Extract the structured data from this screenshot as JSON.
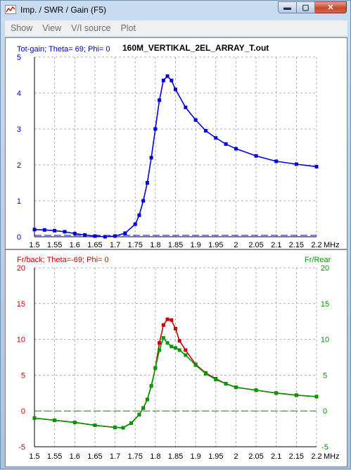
{
  "window": {
    "title": "Imp. / SWR / Gain   (F5)",
    "buttons": {
      "minimize": "▬",
      "maximize": "▢",
      "close": "✕"
    }
  },
  "menu": [
    "Show",
    "View",
    "V/I source",
    "Plot"
  ],
  "plot_title": "160M_VERTIKAL_2EL_ARRAY_T.out",
  "x_unit": "MHz",
  "chart_data": [
    {
      "type": "line",
      "legend_label": "Tot-gain; Theta= 69; Phi= 0",
      "x": [
        1.5,
        1.525,
        1.55,
        1.575,
        1.6,
        1.625,
        1.65,
        1.675,
        1.7,
        1.725,
        1.75,
        1.76,
        1.77,
        1.78,
        1.79,
        1.8,
        1.81,
        1.82,
        1.83,
        1.84,
        1.85,
        1.875,
        1.9,
        1.925,
        1.95,
        1.975,
        2.0,
        2.05,
        2.1,
        2.15,
        2.2
      ],
      "y": [
        0.2,
        0.19,
        0.17,
        0.14,
        0.09,
        0.05,
        0.02,
        0.0,
        0.02,
        0.1,
        0.35,
        0.6,
        1.0,
        1.5,
        2.2,
        3.0,
        3.8,
        4.35,
        4.47,
        4.35,
        4.1,
        3.6,
        3.25,
        2.95,
        2.75,
        2.58,
        2.45,
        2.25,
        2.1,
        2.02,
        1.95
      ],
      "reference_line": 0,
      "x_ticks": [
        "1.5",
        "1.55",
        "1.6",
        "1.65",
        "1.7",
        "1.75",
        "1.8",
        "1.85",
        "1.9",
        "1.95",
        "2",
        "2.05",
        "2.1",
        "2.15",
        "2.2"
      ],
      "y_ticks": [
        "0",
        "1",
        "2",
        "3",
        "4",
        "5"
      ],
      "xlim": [
        1.5,
        2.2
      ],
      "ylim": [
        0,
        5
      ],
      "grid": true,
      "colors": {
        "series": "#0000dd",
        "axis_text": "#0000cc"
      }
    },
    {
      "type": "line",
      "legend_left": "Fr/back; Theta=-69; Phi= 0",
      "legend_right": "Fr/Rear",
      "series": [
        {
          "values_x": [
            1.5,
            1.55,
            1.6,
            1.65,
            1.7,
            1.72,
            1.74,
            1.76,
            1.77,
            1.78,
            1.79,
            1.8,
            1.81,
            1.82,
            1.83,
            1.84,
            1.85,
            1.86,
            1.875,
            1.9,
            1.925,
            1.95,
            1.975,
            2.0,
            2.05,
            2.1,
            2.15,
            2.2
          ],
          "values_y": [
            -1.0,
            -1.3,
            -1.6,
            -2.0,
            -2.3,
            -2.35,
            -1.7,
            -0.5,
            0.4,
            1.6,
            3.5,
            6.0,
            9.5,
            12.0,
            12.8,
            12.7,
            11.5,
            9.8,
            8.5,
            6.5,
            5.3,
            4.5,
            3.8,
            3.3,
            2.9,
            2.5,
            2.2,
            2.0
          ],
          "color": "#cc0000"
        },
        {
          "values_x": [
            1.5,
            1.55,
            1.6,
            1.65,
            1.7,
            1.72,
            1.74,
            1.76,
            1.77,
            1.78,
            1.79,
            1.8,
            1.81,
            1.82,
            1.83,
            1.84,
            1.85,
            1.86,
            1.875,
            1.9,
            1.925,
            1.95,
            1.975,
            2.0,
            2.05,
            2.1,
            2.15,
            2.2
          ],
          "values_y": [
            -1.0,
            -1.3,
            -1.6,
            -2.0,
            -2.3,
            -2.35,
            -1.7,
            -0.5,
            0.4,
            1.6,
            3.5,
            6.0,
            8.5,
            10.2,
            9.5,
            9.0,
            8.8,
            8.5,
            7.8,
            6.4,
            5.2,
            4.4,
            3.8,
            3.3,
            2.9,
            2.5,
            2.2,
            2.0
          ],
          "color": "#009900"
        }
      ],
      "reference_line": 0,
      "x_ticks": [
        "1.5",
        "1.55",
        "1.6",
        "1.65",
        "1.7",
        "1.75",
        "1.8",
        "1.85",
        "1.9",
        "1.95",
        "2",
        "2.05",
        "2.1",
        "2.15",
        "2.2"
      ],
      "y_ticks": [
        "-5",
        "0",
        "5",
        "10",
        "15",
        "20"
      ],
      "xlim": [
        1.5,
        2.2
      ],
      "ylim": [
        -5,
        20
      ],
      "grid": true,
      "colors": {
        "left_axis": "#cc0000",
        "right_axis": "#009900"
      }
    }
  ]
}
